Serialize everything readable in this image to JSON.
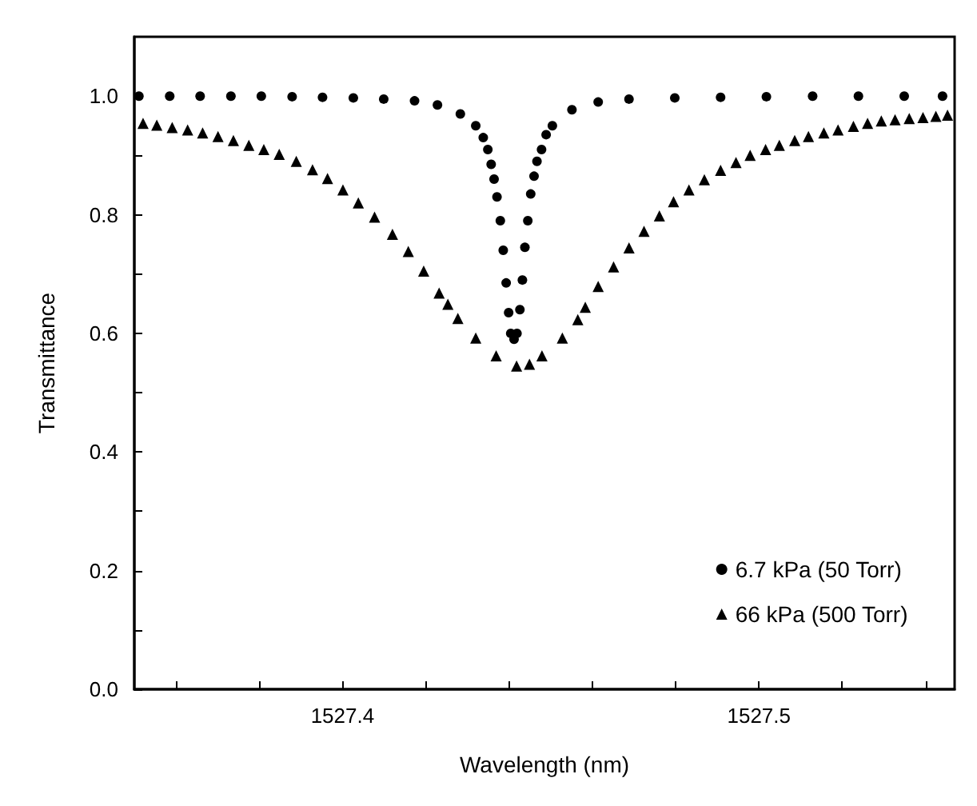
{
  "chart_data": {
    "type": "scatter",
    "xlabel": "Wavelength (nm)",
    "ylabel": "Transmittance",
    "xlim": [
      1527.35,
      1527.547
    ],
    "ylim": [
      0,
      1.1
    ],
    "xticks": [
      {
        "value": 1527.36,
        "label": null
      },
      {
        "value": 1527.38,
        "label": null
      },
      1527.4,
      {
        "value": 1527.42,
        "label": null
      },
      {
        "value": 1527.44,
        "label": null
      },
      {
        "value": 1527.46,
        "label": null
      },
      {
        "value": 1527.48,
        "label": null
      },
      1527.5,
      {
        "value": 1527.52,
        "label": null
      },
      {
        "value": 1527.54,
        "label": null
      }
    ],
    "yticks": [
      {
        "value": 0,
        "label": "0.0"
      },
      {
        "value": 0.1,
        "label": null
      },
      0.2,
      {
        "value": 0.3,
        "label": null
      },
      0.4,
      {
        "value": 0.5,
        "label": null
      },
      0.6,
      {
        "value": 0.7,
        "label": null
      },
      0.8,
      {
        "value": 0.9,
        "label": null
      },
      {
        "value": 1,
        "label": "1.0"
      }
    ],
    "grid": false,
    "legend": "bottom right",
    "series": [
      {
        "name": "6.7 kPa (50 Torr)",
        "color": "#000000",
        "marker": "circle",
        "x": [
          1527.3511,
          1527.3585,
          1527.3658,
          1527.3732,
          1527.3805,
          1527.3879,
          1527.3952,
          1527.4026,
          1527.4099,
          1527.4173,
          1527.4228,
          1527.4283,
          1527.432,
          1527.4338,
          1527.4349,
          1527.4357,
          1527.4364,
          1527.4371,
          1527.4379,
          1527.4386,
          1527.4393,
          1527.4399,
          1527.4404,
          1527.4412,
          1527.4419,
          1527.4426,
          1527.4432,
          1527.4438,
          1527.4445,
          1527.4452,
          1527.446,
          1527.4467,
          1527.4478,
          1527.4489,
          1527.4504,
          1527.4551,
          1527.4614,
          1527.4688,
          1527.4798,
          1527.4908,
          1527.5018,
          1527.5129,
          1527.5239,
          1527.5349,
          1527.5441
        ],
        "values": [
          1.0,
          1.0,
          1.0,
          1.0,
          1.0,
          0.999,
          0.998,
          0.997,
          0.995,
          0.992,
          0.985,
          0.97,
          0.95,
          0.93,
          0.91,
          0.885,
          0.86,
          0.83,
          0.79,
          0.74,
          0.685,
          0.635,
          0.6,
          0.59,
          0.6,
          0.64,
          0.69,
          0.745,
          0.79,
          0.835,
          0.865,
          0.89,
          0.91,
          0.935,
          0.95,
          0.977,
          0.99,
          0.995,
          0.997,
          0.998,
          0.999,
          1.0,
          1.0,
          1.0,
          1.0
        ]
      },
      {
        "name": "66 kPa (500 Torr)",
        "color": "#000000",
        "marker": "triangle",
        "x": [
          1527.3521,
          1527.3554,
          1527.3591,
          1527.3628,
          1527.3664,
          1527.3701,
          1527.3738,
          1527.3775,
          1527.3811,
          1527.3848,
          1527.3889,
          1527.3928,
          1527.3964,
          1527.4001,
          1527.4038,
          1527.4077,
          1527.412,
          1527.4158,
          1527.4195,
          1527.4232,
          1527.4253,
          1527.4277,
          1527.432,
          1527.4369,
          1527.4418,
          1527.4449,
          1527.4479,
          1527.4528,
          1527.4565,
          1527.4583,
          1527.4614,
          1527.4651,
          1527.4688,
          1527.4724,
          1527.4761,
          1527.4795,
          1527.4832,
          1527.4869,
          1527.4908,
          1527.4945,
          1527.4979,
          1527.5016,
          1527.5049,
          1527.5086,
          1527.5119,
          1527.5156,
          1527.519,
          1527.5227,
          1527.5261,
          1527.5294,
          1527.5327,
          1527.5361,
          1527.5394,
          1527.5425,
          1527.5453
        ],
        "values": [
          0.954,
          0.951,
          0.947,
          0.943,
          0.938,
          0.932,
          0.925,
          0.917,
          0.91,
          0.902,
          0.89,
          0.876,
          0.861,
          0.842,
          0.82,
          0.796,
          0.767,
          0.738,
          0.705,
          0.668,
          0.649,
          0.625,
          0.592,
          0.562,
          0.545,
          0.548,
          0.562,
          0.592,
          0.623,
          0.644,
          0.679,
          0.712,
          0.744,
          0.772,
          0.798,
          0.822,
          0.842,
          0.859,
          0.875,
          0.888,
          0.9,
          0.91,
          0.917,
          0.925,
          0.932,
          0.938,
          0.943,
          0.949,
          0.954,
          0.958,
          0.96,
          0.962,
          0.964,
          0.966,
          0.968
        ]
      }
    ]
  }
}
